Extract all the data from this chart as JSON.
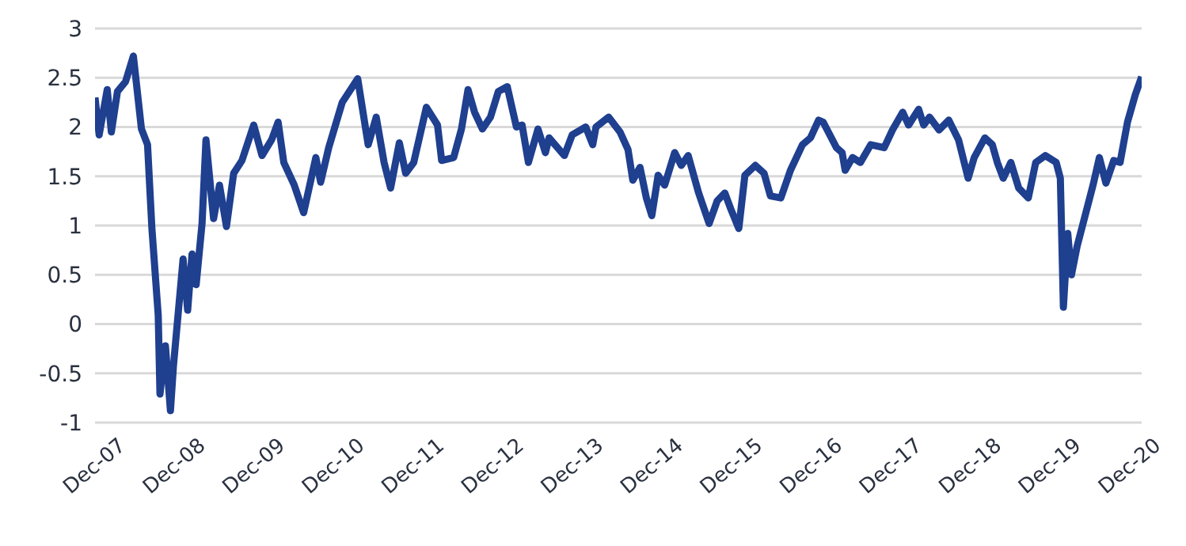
{
  "chart_data": {
    "type": "line",
    "x": [
      "2007-12-01",
      "2007-12-20",
      "2008-01-26",
      "2008-02-14",
      "2008-03-13",
      "2008-04-19",
      "2008-05-25",
      "2008-07-01",
      "2008-07-29",
      "2008-08-18",
      "2008-09-16",
      "2008-09-24",
      "2008-10-19",
      "2008-11-11",
      "2008-11-25",
      "2009-01-08",
      "2009-01-29",
      "2009-02-18",
      "2009-03-09",
      "2009-04-05",
      "2009-04-23",
      "2009-05-28",
      "2009-06-24",
      "2009-07-26",
      "2009-08-28",
      "2009-10-05",
      "2009-11-28",
      "2010-01-05",
      "2010-02-18",
      "2010-03-20",
      "2010-04-15",
      "2010-06-02",
      "2010-07-15",
      "2010-09-09",
      "2010-10-01",
      "2010-11-07",
      "2011-01-08",
      "2011-03-20",
      "2011-05-07",
      "2011-06-13",
      "2011-07-19",
      "2011-08-18",
      "2011-09-27",
      "2011-10-26",
      "2011-12-02",
      "2012-01-29",
      "2012-03-20",
      "2012-04-08",
      "2012-06-02",
      "2012-07-08",
      "2012-08-07",
      "2012-09-06",
      "2012-10-12",
      "2012-11-18",
      "2012-12-24",
      "2013-02-03",
      "2013-03-17",
      "2013-04-12",
      "2013-05-11",
      "2013-06-24",
      "2013-07-28",
      "2013-08-14",
      "2013-10-23",
      "2013-11-28",
      "2014-01-29",
      "2014-03-02",
      "2014-03-17",
      "2014-05-14",
      "2014-07-05",
      "2014-08-11",
      "2014-09-02",
      "2014-10-05",
      "2014-11-03",
      "2014-11-28",
      "2014-12-27",
      "2015-01-26",
      "2015-03-13",
      "2015-04-12",
      "2015-05-14",
      "2015-07-01",
      "2015-08-18",
      "2015-09-24",
      "2015-10-29",
      "2015-11-25",
      "2016-01-01",
      "2016-01-29",
      "2016-03-17",
      "2016-04-26",
      "2016-05-25",
      "2016-07-12",
      "2016-08-25",
      "2016-10-19",
      "2016-11-25",
      "2017-01-01",
      "2017-01-22",
      "2017-03-24",
      "2017-04-19",
      "2017-05-03",
      "2017-06-06",
      "2017-07-12",
      "2017-08-28",
      "2017-10-29",
      "2017-12-06",
      "2018-01-22",
      "2018-02-18",
      "2018-04-05",
      "2018-04-28",
      "2018-05-25",
      "2018-07-08",
      "2018-08-21",
      "2018-10-05",
      "2018-11-18",
      "2018-12-16",
      "2019-02-03",
      "2019-03-09",
      "2019-04-01",
      "2019-04-28",
      "2019-06-02",
      "2019-07-08",
      "2019-08-21",
      "2019-09-24",
      "2019-11-07",
      "2019-12-27",
      "2020-01-15",
      "2020-01-29",
      "2020-02-18",
      "2020-03-06",
      "2020-04-01",
      "2020-04-28",
      "2020-06-13",
      "2020-07-12",
      "2020-08-11",
      "2020-09-16",
      "2020-10-15",
      "2020-11-18",
      "2020-12-24",
      "2021-01-22"
    ],
    "series": [
      {
        "color": "#1f3f8f",
        "values": [
          2.3,
          1.92,
          2.38,
          1.95,
          2.36,
          2.46,
          2.72,
          1.98,
          1.82,
          0.97,
          0.09,
          -0.71,
          -0.22,
          -0.88,
          -0.42,
          0.66,
          0.14,
          0.71,
          0.4,
          1.02,
          1.87,
          1.07,
          1.41,
          0.99,
          1.53,
          1.66,
          2.02,
          1.71,
          1.87,
          2.05,
          1.64,
          1.41,
          1.13,
          1.69,
          1.44,
          1.79,
          2.25,
          2.49,
          1.82,
          2.1,
          1.64,
          1.38,
          1.84,
          1.53,
          1.64,
          2.2,
          2.02,
          1.66,
          1.69,
          1.98,
          2.38,
          2.15,
          1.98,
          2.1,
          2.36,
          2.41,
          2.0,
          2.02,
          1.64,
          1.98,
          1.74,
          1.89,
          1.71,
          1.92,
          2.0,
          1.82,
          2.0,
          2.1,
          1.95,
          1.77,
          1.46,
          1.59,
          1.28,
          1.1,
          1.51,
          1.41,
          1.74,
          1.61,
          1.71,
          1.33,
          1.02,
          1.25,
          1.33,
          1.17,
          0.97,
          1.51,
          1.61,
          1.53,
          1.3,
          1.28,
          1.56,
          1.82,
          1.89,
          2.07,
          2.05,
          1.79,
          1.74,
          1.56,
          1.69,
          1.64,
          1.82,
          1.79,
          1.97,
          2.15,
          2.02,
          2.18,
          2.02,
          2.1,
          1.97,
          2.07,
          1.87,
          1.48,
          1.69,
          1.89,
          1.82,
          1.64,
          1.48,
          1.64,
          1.38,
          1.28,
          1.64,
          1.71,
          1.64,
          1.48,
          0.17,
          0.92,
          0.5,
          0.79,
          1.02,
          1.41,
          1.69,
          1.43,
          1.66,
          1.64,
          2.05,
          2.33,
          2.51
        ]
      }
    ],
    "xlim": [
      "2007-12-01",
      "2021-01-22"
    ],
    "xticks": [
      {
        "value": "2007-12-01",
        "label": "Dec-07"
      },
      {
        "value": "2008-12-01",
        "label": "Dec-08"
      },
      {
        "value": "2009-12-01",
        "label": "Dec-09"
      },
      {
        "value": "2010-12-01",
        "label": "Dec-10"
      },
      {
        "value": "2011-12-01",
        "label": "Dec-11"
      },
      {
        "value": "2012-12-01",
        "label": "Dec-12"
      },
      {
        "value": "2013-12-01",
        "label": "Dec-13"
      },
      {
        "value": "2014-12-01",
        "label": "Dec-14"
      },
      {
        "value": "2015-12-01",
        "label": "Dec-15"
      },
      {
        "value": "2016-12-01",
        "label": "Dec-16"
      },
      {
        "value": "2017-12-01",
        "label": "Dec-17"
      },
      {
        "value": "2018-12-01",
        "label": "Dec-18"
      },
      {
        "value": "2019-12-01",
        "label": "Dec-19"
      },
      {
        "value": "2020-12-01",
        "label": "Dec-20"
      }
    ],
    "ylim": [
      -1,
      3
    ],
    "yticks": [
      -1,
      -0.5,
      0,
      0.5,
      1,
      1.5,
      2,
      2.5,
      3
    ],
    "grid": "y",
    "legend": false,
    "marker": "none",
    "line_style": "solid"
  }
}
